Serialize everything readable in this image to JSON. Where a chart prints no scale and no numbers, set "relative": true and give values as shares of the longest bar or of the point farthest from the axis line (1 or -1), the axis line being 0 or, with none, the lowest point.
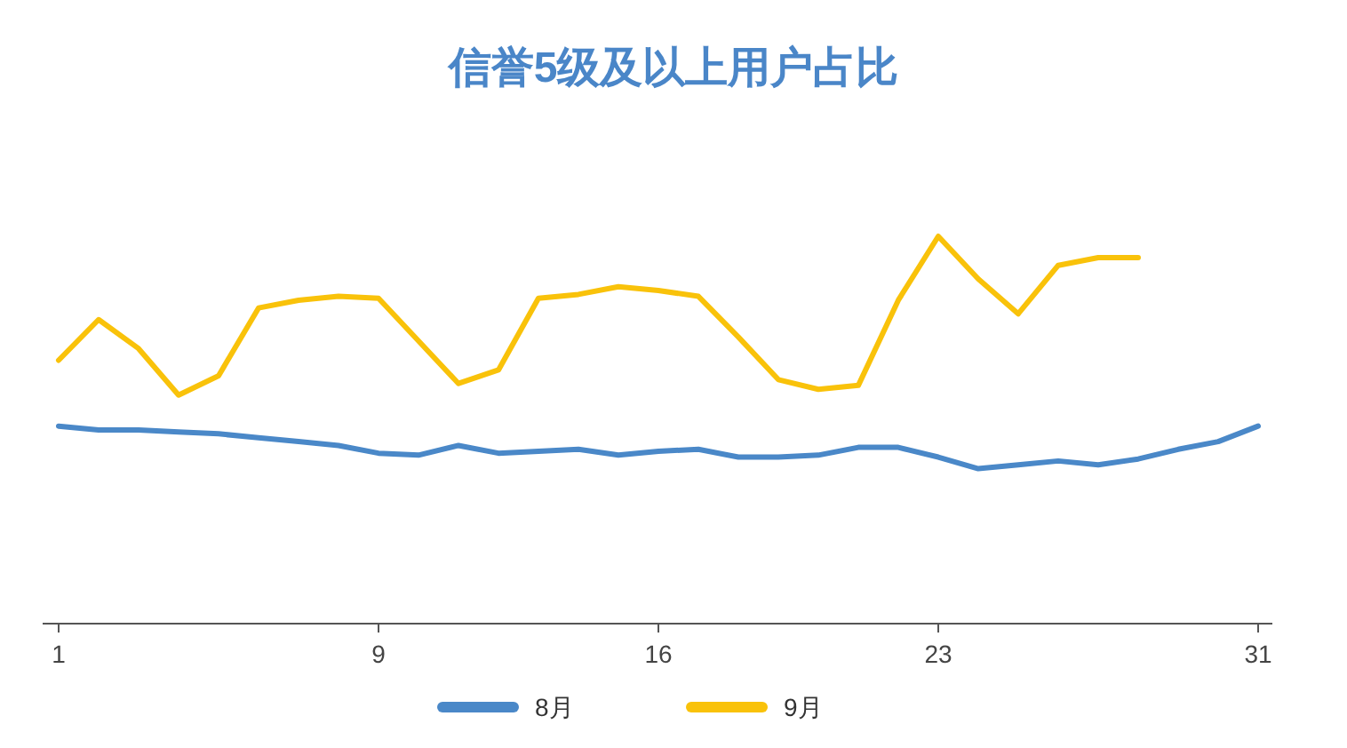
{
  "chart_data": {
    "type": "line",
    "title": "信誉5级及以上用户占比",
    "relative": true,
    "legend": "bottom",
    "marker": "none",
    "line_style": "solid",
    "categories": [
      "1",
      null,
      null,
      null,
      null,
      null,
      null,
      null,
      "9",
      null,
      null,
      null,
      null,
      null,
      null,
      "16",
      null,
      null,
      null,
      null,
      null,
      null,
      "23",
      null,
      null,
      null,
      null,
      null,
      null,
      null,
      "31"
    ],
    "series": [
      {
        "name": "8月",
        "color": "#4a88c8",
        "values": [
          0.51,
          0.5,
          0.5,
          0.495,
          0.49,
          0.48,
          0.47,
          0.46,
          0.44,
          0.435,
          0.46,
          0.44,
          0.445,
          0.45,
          0.435,
          0.445,
          0.45,
          0.43,
          0.43,
          0.435,
          0.455,
          0.455,
          0.43,
          0.4,
          0.41,
          0.42,
          0.41,
          0.425,
          0.45,
          0.47,
          0.51
        ]
      },
      {
        "name": "9月",
        "color": "#f9c20a",
        "values": [
          0.68,
          0.785,
          0.71,
          0.59,
          0.64,
          0.815,
          0.835,
          0.845,
          0.84,
          0.73,
          0.62,
          0.655,
          0.84,
          0.85,
          0.87,
          0.86,
          0.845,
          0.74,
          0.63,
          0.605,
          0.615,
          0.835,
          1,
          0.89,
          0.8,
          0.925,
          0.945,
          0.945,
          null,
          null,
          null
        ]
      }
    ]
  }
}
